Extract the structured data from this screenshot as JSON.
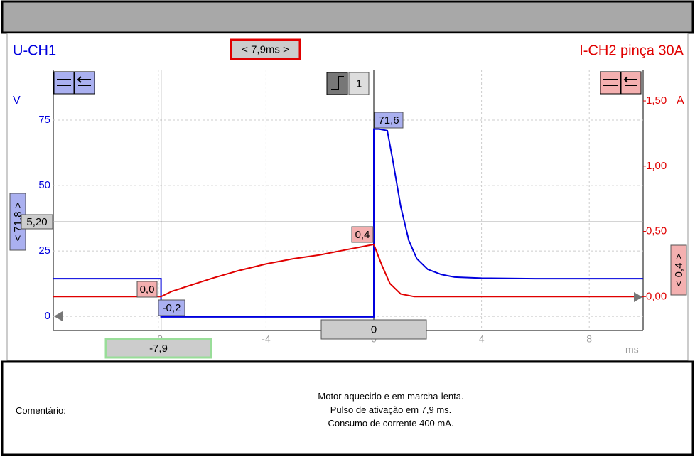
{
  "chart_data": {
    "type": "line",
    "title": "U-CH1",
    "title_right": "I-CH2 pinça 30A",
    "y_label": "V",
    "y2_label": "A",
    "x_label": "ms",
    "series": [
      {
        "name": "U-CH1",
        "color": "#0000dd",
        "x": [
          -11.9,
          -7.9,
          -7.9,
          0,
          0,
          0.2,
          0.5,
          0.7,
          1.0,
          1.3,
          1.6,
          2.0,
          2.5,
          3,
          4,
          6,
          8,
          10
        ],
        "values": [
          14.4,
          14.4,
          -0.2,
          -0.2,
          71.6,
          71.6,
          71,
          60,
          42,
          29,
          22,
          18,
          16,
          15,
          14.6,
          14.4,
          14.4,
          14.4
        ]
      },
      {
        "name": "I-CH2 pinça 30A",
        "color": "#e00000",
        "axis": "y2",
        "x": [
          -11.9,
          -7.9,
          -7.5,
          -6,
          -5,
          -4,
          -3,
          -2,
          -1,
          -0.5,
          0,
          0.3,
          0.6,
          1,
          1.5,
          3,
          6,
          10
        ],
        "values": [
          0.0,
          0.0,
          0.04,
          0.14,
          0.2,
          0.25,
          0.29,
          0.32,
          0.36,
          0.38,
          0.4,
          0.24,
          0.1,
          0.02,
          0.0,
          0.0,
          0.0,
          0.0
        ]
      }
    ],
    "xlim": [
      -11.9,
      10
    ],
    "xticks": [
      -8,
      -4,
      0,
      4,
      8
    ],
    "ylim": [
      -5.4,
      94.3
    ],
    "yticks": [
      0,
      25,
      50,
      75
    ],
    "y2lim": [
      -0.26,
      1.74
    ],
    "y2ticks": [
      {
        "value": 0,
        "label": "0,00"
      },
      {
        "value": 0.5,
        "label": "0,50"
      },
      {
        "value": 1,
        "label": "1,00"
      },
      {
        "value": 1.5,
        "label": "1,50"
      }
    ],
    "grid": true,
    "annotations": {
      "delta": "< 7,9ms >",
      "peak": "71,6",
      "current_peak": "0,4",
      "current_start": "0,0",
      "voltage_low": "-0,2",
      "cursor1": "-7,9",
      "cursor2": "0",
      "range_left": "< 71,8 >",
      "range_right": "< 0,4 >",
      "level": "5,20",
      "trigger": "1"
    }
  },
  "comment": {
    "label": "Comentário:",
    "lines": [
      "Motor aquecido e em marcha-lenta.",
      "Pulso de ativação em 7,9 ms.",
      "Consumo de corrente 400 mA."
    ]
  }
}
